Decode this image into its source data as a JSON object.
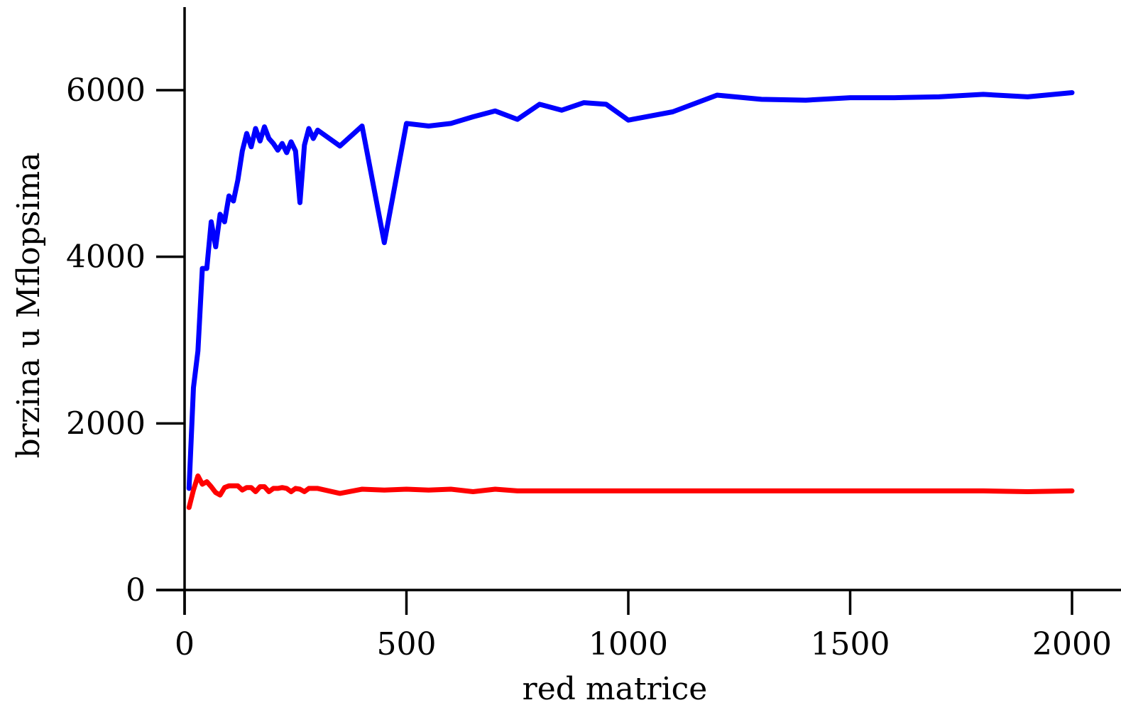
{
  "chart_data": {
    "type": "line",
    "title": "",
    "xlabel": "red matrice",
    "ylabel": "brzina u Mflopsima",
    "xlim": [
      0,
      2000
    ],
    "ylim": [
      0,
      7000
    ],
    "xticks": [
      0,
      500,
      1000,
      1500,
      2000
    ],
    "yticks": [
      0,
      2000,
      4000,
      6000
    ],
    "xtick_labels": [
      "0",
      "500",
      "1000",
      "1500",
      "2000"
    ],
    "ytick_labels": [
      "0",
      "2000",
      "4000",
      "6000"
    ],
    "grid": false,
    "legend": "none",
    "series": [
      {
        "color": "#0000ff",
        "x": [
          10,
          20,
          30,
          40,
          50,
          60,
          70,
          80,
          90,
          100,
          110,
          120,
          130,
          140,
          150,
          160,
          170,
          180,
          190,
          200,
          210,
          220,
          230,
          240,
          250,
          260,
          270,
          280,
          290,
          300,
          350,
          400,
          450,
          500,
          550,
          600,
          650,
          700,
          750,
          800,
          850,
          900,
          950,
          1000,
          1100,
          1200,
          1300,
          1400,
          1500,
          1600,
          1700,
          1800,
          1900,
          2000
        ],
        "y": [
          1220,
          2430,
          2870,
          3860,
          3860,
          4420,
          4120,
          4510,
          4420,
          4730,
          4670,
          4920,
          5270,
          5480,
          5320,
          5540,
          5390,
          5560,
          5420,
          5360,
          5280,
          5360,
          5250,
          5380,
          5270,
          4650,
          5340,
          5540,
          5420,
          5520,
          5330,
          5570,
          4170,
          5600,
          5570,
          5600,
          5680,
          5750,
          5650,
          5830,
          5760,
          5850,
          5830,
          5640,
          5740,
          5940,
          5890,
          5880,
          5910,
          5910,
          5920,
          5950,
          5920,
          5970
        ]
      },
      {
        "color": "#ff0000",
        "x": [
          10,
          20,
          30,
          40,
          50,
          60,
          70,
          80,
          90,
          100,
          110,
          120,
          130,
          140,
          150,
          160,
          170,
          180,
          190,
          200,
          210,
          220,
          230,
          240,
          250,
          260,
          270,
          280,
          290,
          300,
          350,
          400,
          450,
          500,
          550,
          600,
          650,
          700,
          750,
          800,
          850,
          900,
          950,
          1000,
          1100,
          1200,
          1300,
          1400,
          1500,
          1600,
          1700,
          1800,
          1900,
          2000
        ],
        "y": [
          990,
          1200,
          1370,
          1270,
          1300,
          1240,
          1170,
          1140,
          1230,
          1250,
          1250,
          1250,
          1200,
          1230,
          1230,
          1180,
          1240,
          1240,
          1180,
          1220,
          1220,
          1230,
          1220,
          1180,
          1220,
          1210,
          1180,
          1220,
          1220,
          1220,
          1160,
          1210,
          1200,
          1210,
          1200,
          1210,
          1180,
          1210,
          1190,
          1190,
          1190,
          1190,
          1190,
          1190,
          1190,
          1190,
          1190,
          1190,
          1190,
          1190,
          1190,
          1190,
          1180,
          1190
        ]
      }
    ]
  }
}
